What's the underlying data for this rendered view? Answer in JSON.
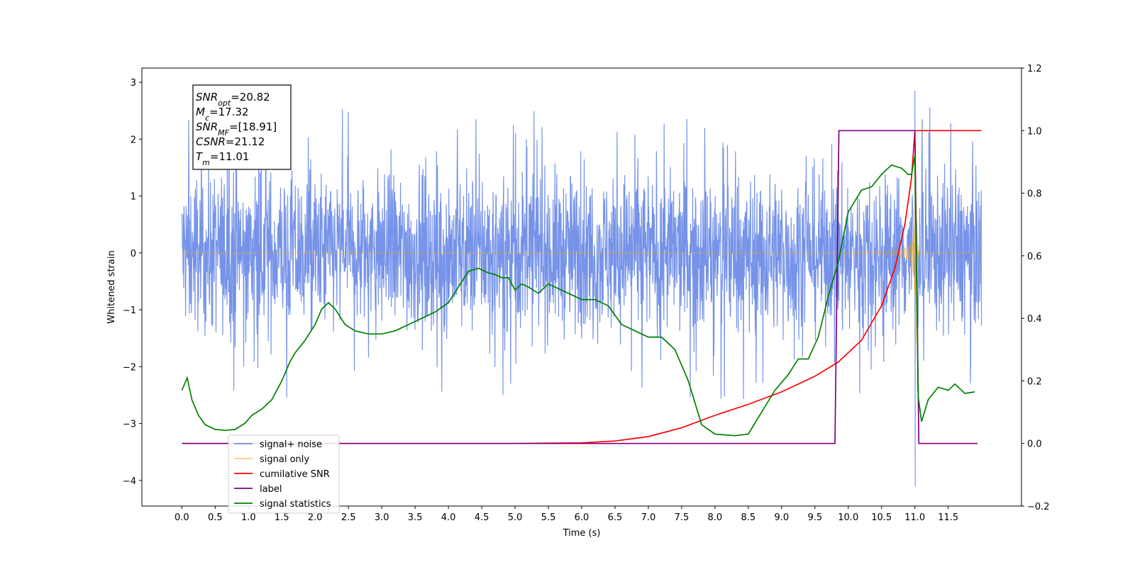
{
  "chart_data": {
    "type": "line",
    "xlabel": "Time (s)",
    "ylabel": "Whitened strain",
    "xlim": [
      -0.6,
      12.6
    ],
    "ylim": [
      -4.45,
      3.25
    ],
    "y2lim": [
      -0.2,
      1.2
    ],
    "x_ticks": [
      "0.0",
      "0.5",
      "1.0",
      "1.5",
      "2.0",
      "2.5",
      "3.0",
      "3.5",
      "4.0",
      "4.5",
      "5.0",
      "5.5",
      "6.0",
      "6.5",
      "7.0",
      "7.5",
      "8.0",
      "8.5",
      "9.0",
      "9.5",
      "10.0",
      "10.5",
      "11.0",
      "11.5"
    ],
    "y_ticks": [
      "3",
      "2",
      "1",
      "0",
      "−1",
      "−2",
      "−3",
      "−4"
    ],
    "y2_ticks": [
      "1.2",
      "1.0",
      "0.8",
      "0.6",
      "0.4",
      "0.2",
      "0.0",
      "−0.2"
    ],
    "legend_position": "lower-left",
    "annotation": [
      {
        "sym": "SNR",
        "sub": "opt",
        "val": "=20.82"
      },
      {
        "sym": "M",
        "sub": "c",
        "val": "=17.32"
      },
      {
        "sym": "SNR",
        "sub": "MF",
        "val": "=[18.91]"
      },
      {
        "sym": "CSNR",
        "sub": "",
        "val": "=21.12"
      },
      {
        "sym": "T",
        "sub": "m",
        "val": "=11.01"
      }
    ],
    "series": [
      {
        "name": "signal+ noise",
        "color": "#4169e1",
        "axis": "left",
        "noise_envelope": {
          "x_range": [
            0.0,
            12.0
          ],
          "typical_abs": 1.1,
          "max": 2.85,
          "min": -4.1
        }
      },
      {
        "name": "signal only",
        "color": "#ffa500",
        "axis": "left",
        "chirp": {
          "merger_time": 11.01,
          "peak_amplitude": 2.6,
          "x_range": [
            0.0,
            12.0
          ]
        }
      },
      {
        "name": "cumilative SNR",
        "color": "#ff0000",
        "axis": "right",
        "x": [
          0.0,
          5.0,
          6.0,
          6.5,
          7.0,
          7.5,
          8.0,
          8.5,
          9.0,
          9.5,
          9.85,
          10.2,
          10.5,
          10.7,
          10.85,
          10.95,
          11.0,
          12.0
        ],
        "values": [
          0.0,
          0.0,
          0.002,
          0.008,
          0.022,
          0.05,
          0.09,
          0.125,
          0.165,
          0.215,
          0.26,
          0.33,
          0.44,
          0.56,
          0.7,
          0.85,
          1.0,
          1.0
        ]
      },
      {
        "name": "label",
        "color": "#800080",
        "axis": "right",
        "x": [
          0.0,
          9.8,
          9.86,
          11.0,
          11.06,
          11.94
        ],
        "values": [
          0.0,
          0.0,
          1.0,
          1.0,
          0.0,
          0.0
        ]
      },
      {
        "name": "signal statistics",
        "color": "#008000",
        "axis": "right",
        "x": [
          0.0,
          0.08,
          0.15,
          0.25,
          0.35,
          0.5,
          0.65,
          0.8,
          0.95,
          1.05,
          1.2,
          1.35,
          1.5,
          1.62,
          1.7,
          1.85,
          2.0,
          2.1,
          2.2,
          2.3,
          2.45,
          2.6,
          2.8,
          3.0,
          3.2,
          3.4,
          3.6,
          3.8,
          4.0,
          4.15,
          4.3,
          4.45,
          4.5,
          4.6,
          4.7,
          4.8,
          4.9,
          5.0,
          5.1,
          5.2,
          5.35,
          5.5,
          5.6,
          5.8,
          6.0,
          6.2,
          6.4,
          6.6,
          6.8,
          7.0,
          7.2,
          7.4,
          7.6,
          7.8,
          8.0,
          8.3,
          8.5,
          8.7,
          8.9,
          9.1,
          9.25,
          9.4,
          9.55,
          9.7,
          9.85,
          10.0,
          10.2,
          10.35,
          10.5,
          10.65,
          10.8,
          10.9,
          10.95,
          11.0,
          11.05,
          11.1,
          11.2,
          11.35,
          11.5,
          11.6,
          11.75,
          11.9
        ],
        "values": [
          0.17,
          0.21,
          0.14,
          0.09,
          0.06,
          0.045,
          0.042,
          0.045,
          0.065,
          0.09,
          0.11,
          0.14,
          0.2,
          0.26,
          0.29,
          0.33,
          0.38,
          0.43,
          0.45,
          0.43,
          0.38,
          0.36,
          0.35,
          0.35,
          0.36,
          0.38,
          0.4,
          0.42,
          0.45,
          0.5,
          0.55,
          0.56,
          0.555,
          0.545,
          0.54,
          0.53,
          0.53,
          0.49,
          0.51,
          0.5,
          0.48,
          0.51,
          0.5,
          0.48,
          0.46,
          0.46,
          0.44,
          0.38,
          0.36,
          0.34,
          0.34,
          0.3,
          0.2,
          0.06,
          0.03,
          0.025,
          0.03,
          0.1,
          0.17,
          0.22,
          0.27,
          0.27,
          0.34,
          0.47,
          0.58,
          0.74,
          0.81,
          0.82,
          0.86,
          0.89,
          0.88,
          0.86,
          0.86,
          0.92,
          0.15,
          0.07,
          0.14,
          0.18,
          0.17,
          0.19,
          0.16,
          0.165
        ]
      }
    ]
  }
}
